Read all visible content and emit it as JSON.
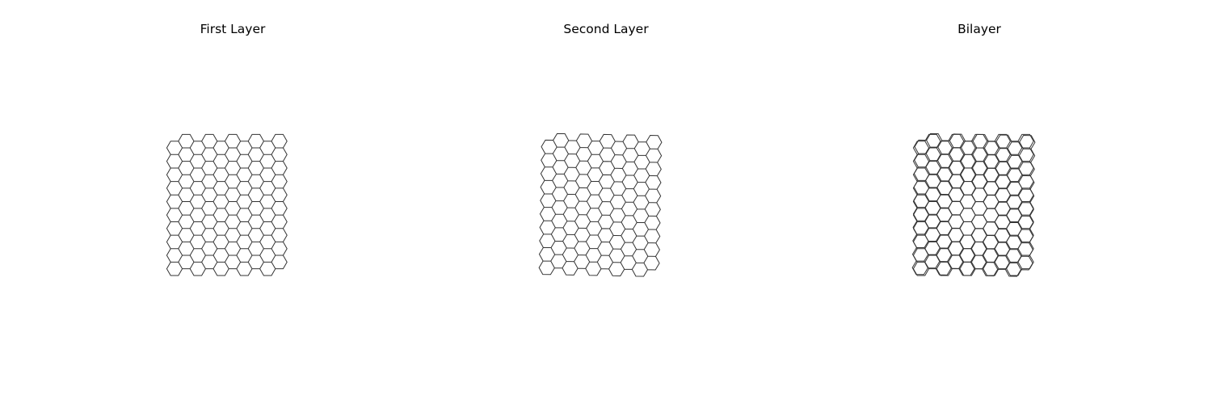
{
  "panels": [
    {
      "title": "First Layer",
      "layers": [
        {
          "rotation_deg": 0
        }
      ]
    },
    {
      "title": "Second Layer",
      "layers": [
        {
          "rotation_deg": 1.1
        }
      ]
    },
    {
      "title": "Bilayer",
      "layers": [
        {
          "rotation_deg": 0
        },
        {
          "rotation_deg": 1.1
        }
      ]
    }
  ],
  "lattice": {
    "type": "honeycomb",
    "stroke_color": "#333333"
  }
}
